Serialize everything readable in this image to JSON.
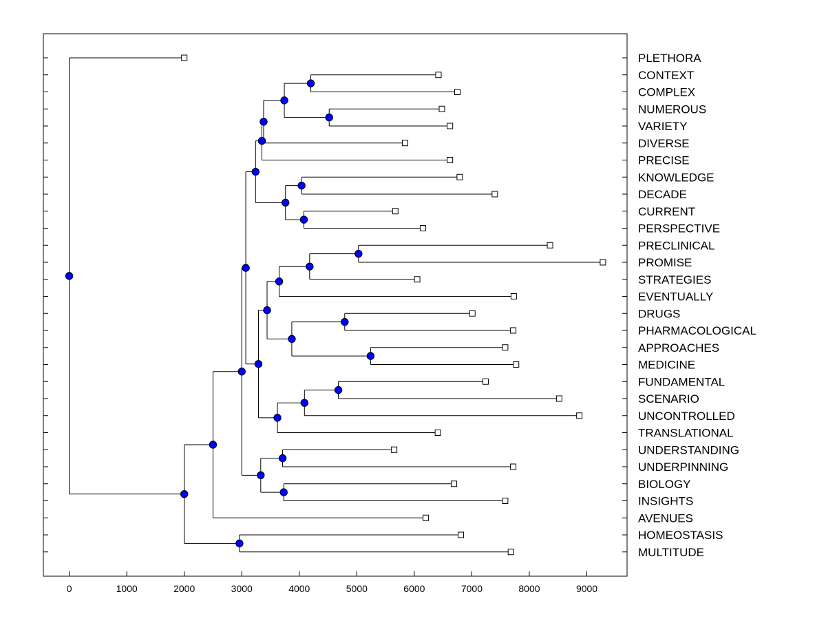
{
  "chart_data": {
    "type": "dendrogram",
    "title": "",
    "xlabel": "",
    "ylabel": "",
    "xlim": [
      -450,
      9700
    ],
    "x_ticks": [
      0,
      1000,
      2000,
      3000,
      4000,
      5000,
      6000,
      7000,
      8000,
      9000
    ],
    "x_tick_labels": [
      "0",
      "1000",
      "2000",
      "3000",
      "4000",
      "5000",
      "6000",
      "7000",
      "8000",
      "9000"
    ],
    "colors": {
      "node": "#0000ff",
      "line": "#000000",
      "leaf": "#ffffff"
    },
    "leaves": [
      {
        "label": "PLETHORA",
        "value": 2000
      },
      {
        "label": "CONTEXT",
        "value": 6420
      },
      {
        "label": "COMPLEX",
        "value": 6750
      },
      {
        "label": "NUMEROUS",
        "value": 6480
      },
      {
        "label": "VARIETY",
        "value": 6620
      },
      {
        "label": "DIVERSE",
        "value": 5840
      },
      {
        "label": "PRECISE",
        "value": 6620
      },
      {
        "label": "KNOWLEDGE",
        "value": 6790
      },
      {
        "label": "DECADE",
        "value": 7400
      },
      {
        "label": "CURRENT",
        "value": 5670
      },
      {
        "label": "PERSPECTIVE",
        "value": 6150
      },
      {
        "label": "PRECLINICAL",
        "value": 8360
      },
      {
        "label": "PROMISE",
        "value": 9280
      },
      {
        "label": "STRATEGIES",
        "value": 6050
      },
      {
        "label": "EVENTUALLY",
        "value": 7730
      },
      {
        "label": "DRUGS",
        "value": 7010
      },
      {
        "label": "PHARMACOLOGICAL",
        "value": 7720
      },
      {
        "label": "APPROACHES",
        "value": 7580
      },
      {
        "label": "MEDICINE",
        "value": 7770
      },
      {
        "label": "FUNDAMENTAL",
        "value": 7240
      },
      {
        "label": "SCENARIO",
        "value": 8520
      },
      {
        "label": "UNCONTROLLED",
        "value": 8870
      },
      {
        "label": "TRANSLATIONAL",
        "value": 6410
      },
      {
        "label": "UNDERSTANDING",
        "value": 5650
      },
      {
        "label": "UNDERPINNING",
        "value": 7720
      },
      {
        "label": "BIOLOGY",
        "value": 6690
      },
      {
        "label": "INSIGHTS",
        "value": 7580
      },
      {
        "label": "AVENUES",
        "value": 6200
      },
      {
        "label": "HOMEOSTASIS",
        "value": 6810
      },
      {
        "label": "MULTITUDE",
        "value": 7680
      }
    ],
    "merges": [
      {
        "id": "n1",
        "x": 4200,
        "children": [
          "L1",
          "L2"
        ]
      },
      {
        "id": "n2",
        "x": 4520,
        "children": [
          "L3",
          "L4"
        ]
      },
      {
        "id": "n3",
        "x": 3740,
        "children": [
          "n1",
          "n2"
        ]
      },
      {
        "id": "n4",
        "x": 3380,
        "children": [
          "n3",
          "L5"
        ]
      },
      {
        "id": "n5",
        "x": 3350,
        "children": [
          "n4",
          "L6"
        ]
      },
      {
        "id": "n6",
        "x": 4040,
        "children": [
          "L7",
          "L8"
        ]
      },
      {
        "id": "n7",
        "x": 4080,
        "children": [
          "L9",
          "L10"
        ]
      },
      {
        "id": "n8",
        "x": 3760,
        "children": [
          "n6",
          "n7"
        ]
      },
      {
        "id": "n9",
        "x": 3240,
        "children": [
          "n5",
          "n8"
        ]
      },
      {
        "id": "n10",
        "x": 5030,
        "children": [
          "L11",
          "L12"
        ]
      },
      {
        "id": "n11",
        "x": 4180,
        "children": [
          "n10",
          "L13"
        ]
      },
      {
        "id": "n12",
        "x": 3650,
        "children": [
          "n11",
          "L14"
        ]
      },
      {
        "id": "n13",
        "x": 4790,
        "children": [
          "L15",
          "L16"
        ]
      },
      {
        "id": "n14",
        "x": 5240,
        "children": [
          "L17",
          "L18"
        ]
      },
      {
        "id": "n15",
        "x": 3870,
        "children": [
          "n13",
          "n14"
        ]
      },
      {
        "id": "n16",
        "x": 3440,
        "children": [
          "n12",
          "n15"
        ]
      },
      {
        "id": "n17",
        "x": 4680,
        "children": [
          "L19",
          "L20"
        ]
      },
      {
        "id": "n18",
        "x": 4090,
        "children": [
          "n17",
          "L21"
        ]
      },
      {
        "id": "n19",
        "x": 3620,
        "children": [
          "n18",
          "L22"
        ]
      },
      {
        "id": "n20",
        "x": 3290,
        "children": [
          "n16",
          "n19"
        ]
      },
      {
        "id": "n21",
        "x": 3070,
        "children": [
          "n9",
          "n20"
        ]
      },
      {
        "id": "n22",
        "x": 3710,
        "children": [
          "L23",
          "L24"
        ]
      },
      {
        "id": "n23",
        "x": 3730,
        "children": [
          "L25",
          "L26"
        ]
      },
      {
        "id": "n24",
        "x": 3330,
        "children": [
          "n22",
          "n23"
        ]
      },
      {
        "id": "n25",
        "x": 3000,
        "children": [
          "n21",
          "n24"
        ]
      },
      {
        "id": "n26",
        "x": 2500,
        "children": [
          "n25",
          "L27"
        ]
      },
      {
        "id": "n27",
        "x": 2960,
        "children": [
          "L28",
          "L29"
        ]
      },
      {
        "id": "n28",
        "x": 2000,
        "children": [
          "n26",
          "n27"
        ]
      },
      {
        "id": "n29",
        "x": 0,
        "children": [
          "L0",
          "n28"
        ]
      }
    ]
  }
}
